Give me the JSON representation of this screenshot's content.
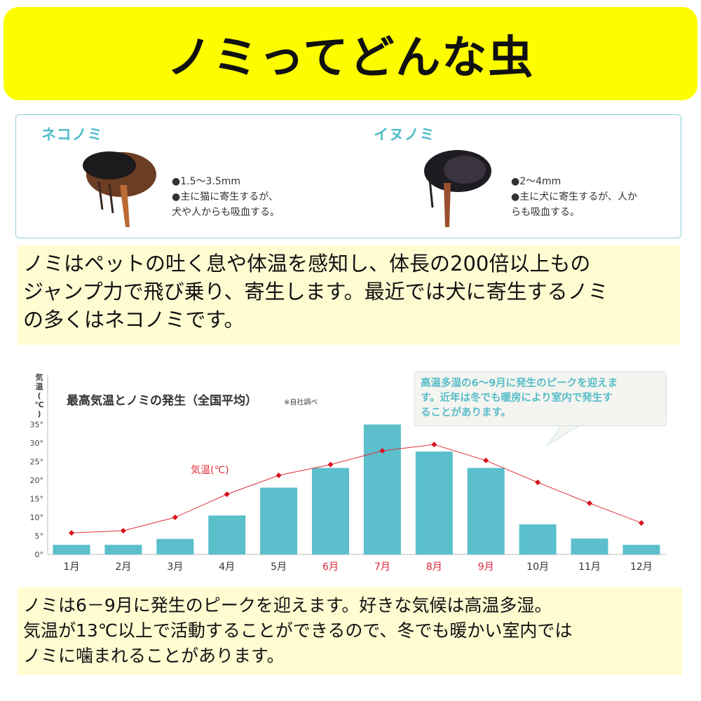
{
  "banner": {
    "title": "ノミってどんな虫"
  },
  "fleas": [
    {
      "name": "ネコノミ",
      "size": "●1.5～3.5mm",
      "desc_lines": [
        "●主に猫に寄生するが、",
        "犬や人からも吸血する。"
      ]
    },
    {
      "name": "イヌノミ",
      "size": "●2～4mm",
      "desc_lines": [
        "●主に犬に寄生するが、人か",
        "らも吸血する。"
      ]
    }
  ],
  "intro_lines": [
    "ノミはペットの吐く息や体温を感知し、体長の200倍以上もの",
    "ジャンプ力で飛び乗り、寄生します。最近では犬に寄生するノミ",
    "の多くはネコノミです。"
  ],
  "callout_lines": [
    "高温多湿の6～9月に発生のピークを迎えま",
    "す。近年は冬でも暖房により室内で発生す",
    "ることがあります。"
  ],
  "chart_data": {
    "type": "bar",
    "title": "最高気温とノミの発生（全国平均）",
    "title_note": "※自社調べ",
    "ylabel": "気温(℃)",
    "ylim": [
      0,
      35
    ],
    "yticks": [
      "0°",
      "5°",
      "10°",
      "15°",
      "20°",
      "25°",
      "30°",
      "35°"
    ],
    "ytick_values": [
      0,
      5,
      10,
      15,
      20,
      25,
      30,
      35
    ],
    "categories": [
      "1月",
      "2月",
      "3月",
      "4月",
      "5月",
      "6月",
      "7月",
      "8月",
      "9月",
      "10月",
      "11月",
      "12月"
    ],
    "highlight_categories": [
      "6月",
      "7月",
      "8月",
      "9月"
    ],
    "series": [
      {
        "type": "bar",
        "values": [
          2.6,
          2.6,
          4.2,
          10.5,
          18,
          23.3,
          35,
          27.7,
          23.3,
          8.1,
          4.3,
          2.6
        ],
        "color": "#5bbfcc"
      },
      {
        "type": "line",
        "name": "気温(℃)",
        "values": [
          5.8,
          6.4,
          10,
          16.2,
          21.3,
          24.2,
          27.9,
          29.6,
          25.3,
          19.4,
          13.8,
          8.5
        ],
        "color": "#e0303c"
      }
    ],
    "grid": false,
    "colors": {
      "highlight_label": "#d9263a",
      "axis": "#bbbbbb"
    }
  },
  "summary_lines": [
    "ノミは6－9月に発生のピークを迎えます。好きな気候は高温多湿。",
    "気温が13℃以上で活動することができるので、冬でも暖かい室内では",
    "ノミに噛まれることがあります。"
  ]
}
